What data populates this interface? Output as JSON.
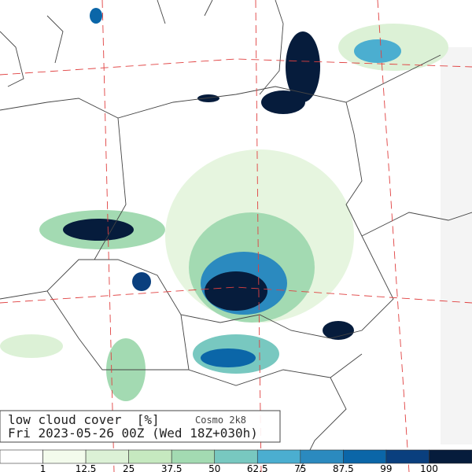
{
  "header": {
    "title": "low cloud cover  [%]",
    "model": "Cosmo 2k8",
    "timestamp": "Fri 2023-05-26 00Z (Wed 18Z+030h)"
  },
  "legend": {
    "ticks": [
      "1",
      "12.5",
      "25",
      "37.5",
      "50",
      "62.5",
      "75",
      "87.5",
      "99",
      "100"
    ],
    "colors": [
      "#ffffff",
      "#f3fbec",
      "#dcf1d6",
      "#c6e9c0",
      "#a3dab2",
      "#78c8c0",
      "#4baed0",
      "#2b8abf",
      "#0b66a8",
      "#0a3f7e",
      "#061c3c"
    ]
  }
}
